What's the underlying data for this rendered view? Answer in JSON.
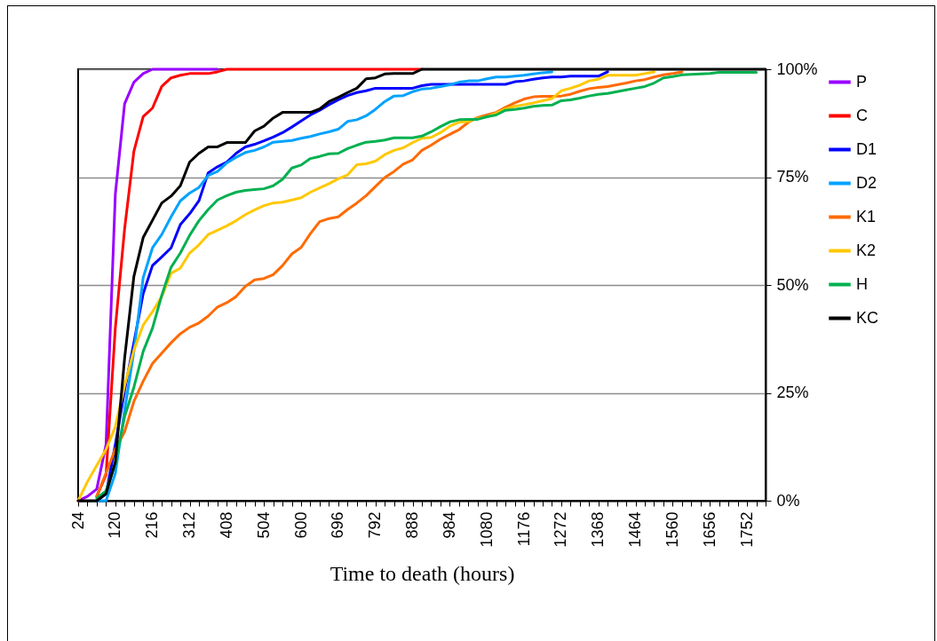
{
  "chart_data": {
    "type": "line",
    "xlabel": "Time to death (hours)",
    "x": [
      24,
      48,
      72,
      96,
      120,
      144,
      168,
      192,
      216,
      240,
      264,
      288,
      312,
      336,
      360,
      384,
      408,
      432,
      456,
      480,
      504,
      528,
      552,
      576,
      600,
      624,
      648,
      672,
      696,
      720,
      744,
      768,
      792,
      816,
      840,
      864,
      888,
      912,
      936,
      960,
      984,
      1008,
      1032,
      1056,
      1080,
      1104,
      1128,
      1152,
      1176,
      1200,
      1224,
      1248,
      1272,
      1296,
      1320,
      1344,
      1368,
      1392,
      1416,
      1440,
      1464,
      1488,
      1512,
      1536,
      1560,
      1584,
      1608,
      1632,
      1656,
      1680,
      1704,
      1728,
      1752,
      1776,
      1800
    ],
    "xlim": [
      24,
      1800
    ],
    "xticks": [
      24,
      {
        "value": 48,
        "label": null
      },
      {
        "value": 72,
        "label": null
      },
      {
        "value": 96,
        "label": null
      },
      120,
      {
        "value": 144,
        "label": null
      },
      {
        "value": 168,
        "label": null
      },
      {
        "value": 192,
        "label": null
      },
      216,
      {
        "value": 240,
        "label": null
      },
      {
        "value": 264,
        "label": null
      },
      {
        "value": 288,
        "label": null
      },
      312,
      {
        "value": 336,
        "label": null
      },
      {
        "value": 360,
        "label": null
      },
      {
        "value": 384,
        "label": null
      },
      408,
      {
        "value": 432,
        "label": null
      },
      {
        "value": 456,
        "label": null
      },
      {
        "value": 480,
        "label": null
      },
      504,
      {
        "value": 528,
        "label": null
      },
      {
        "value": 552,
        "label": null
      },
      {
        "value": 576,
        "label": null
      },
      600,
      {
        "value": 624,
        "label": null
      },
      {
        "value": 648,
        "label": null
      },
      {
        "value": 672,
        "label": null
      },
      696,
      {
        "value": 720,
        "label": null
      },
      {
        "value": 744,
        "label": null
      },
      {
        "value": 768,
        "label": null
      },
      792,
      {
        "value": 816,
        "label": null
      },
      {
        "value": 840,
        "label": null
      },
      {
        "value": 864,
        "label": null
      },
      888,
      {
        "value": 912,
        "label": null
      },
      {
        "value": 936,
        "label": null
      },
      {
        "value": 960,
        "label": null
      },
      984,
      {
        "value": 1008,
        "label": null
      },
      {
        "value": 1032,
        "label": null
      },
      {
        "value": 1056,
        "label": null
      },
      1080,
      {
        "value": 1104,
        "label": null
      },
      {
        "value": 1128,
        "label": null
      },
      {
        "value": 1152,
        "label": null
      },
      1176,
      {
        "value": 1200,
        "label": null
      },
      {
        "value": 1224,
        "label": null
      },
      {
        "value": 1248,
        "label": null
      },
      1272,
      {
        "value": 1296,
        "label": null
      },
      {
        "value": 1320,
        "label": null
      },
      {
        "value": 1344,
        "label": null
      },
      1368,
      {
        "value": 1392,
        "label": null
      },
      {
        "value": 1416,
        "label": null
      },
      {
        "value": 1440,
        "label": null
      },
      1464,
      {
        "value": 1488,
        "label": null
      },
      {
        "value": 1512,
        "label": null
      },
      {
        "value": 1536,
        "label": null
      },
      1560,
      {
        "value": 1584,
        "label": null
      },
      {
        "value": 1608,
        "label": null
      },
      {
        "value": 1632,
        "label": null
      },
      1656,
      {
        "value": 1680,
        "label": null
      },
      {
        "value": 1704,
        "label": null
      },
      {
        "value": 1728,
        "label": null
      },
      1752,
      {
        "value": 1776,
        "label": null
      },
      {
        "value": 1800,
        "label": null
      }
    ],
    "ylim": [
      0,
      100
    ],
    "yticks": [
      {
        "value": 0,
        "label": "0%"
      },
      {
        "value": 25,
        "label": "25%"
      },
      {
        "value": 50,
        "label": "50%"
      },
      {
        "value": 75,
        "label": "75%"
      },
      {
        "value": 100,
        "label": "100%"
      }
    ],
    "grid": "y",
    "legend": "right",
    "series": [
      {
        "name": "P",
        "color": "#9900ff",
        "values": [
          0,
          1,
          2.7,
          13,
          71,
          92,
          97,
          99,
          100,
          100,
          100,
          100,
          100,
          100,
          100,
          100,
          null,
          null,
          null,
          null,
          null,
          null,
          null,
          null,
          null,
          null,
          null,
          null,
          null,
          null,
          null,
          null,
          null,
          null,
          null,
          null,
          null,
          null,
          null,
          null,
          null,
          null,
          null,
          null,
          null,
          null,
          null,
          null,
          null,
          null,
          null,
          null,
          null,
          null,
          null,
          null,
          null,
          null,
          null,
          null,
          null,
          null,
          null,
          null,
          null,
          null,
          null,
          null,
          null,
          null,
          null,
          null,
          null,
          null,
          null
        ]
      },
      {
        "name": "C",
        "color": "#ff0000",
        "values": [
          null,
          null,
          1,
          6,
          40,
          63,
          81,
          89,
          91,
          96,
          98,
          98.6,
          99,
          99,
          99,
          99.4,
          100,
          100,
          100,
          100,
          100,
          100,
          100,
          100,
          100,
          100,
          100,
          100,
          100,
          100,
          100,
          100,
          100,
          100,
          100,
          100,
          100,
          100,
          null,
          null,
          null,
          null,
          null,
          null,
          null,
          null,
          null,
          null,
          null,
          null,
          null,
          null,
          null,
          null,
          null,
          null,
          null,
          null,
          null,
          null,
          null,
          null,
          null,
          null,
          null,
          null,
          null,
          null,
          null,
          null,
          null,
          null,
          null,
          null,
          null
        ]
      },
      {
        "name": "D1",
        "color": "#0000ff",
        "values": [
          null,
          null,
          0,
          1.6,
          13,
          25.6,
          36.6,
          48,
          54.5,
          56.5,
          58.6,
          64,
          66.5,
          69.5,
          76,
          77.4,
          78.5,
          80.5,
          82,
          82.6,
          83.4,
          84.3,
          85.3,
          86.6,
          88,
          89.4,
          90.5,
          91.8,
          92.9,
          93.9,
          94.6,
          95,
          95.6,
          95.6,
          95.6,
          95.6,
          95.6,
          96.2,
          96.5,
          96.5,
          96.5,
          96.5,
          96.5,
          96.5,
          96.5,
          96.5,
          96.5,
          97.1,
          97.3,
          97.7,
          98,
          98.2,
          98.2,
          98.4,
          98.4,
          98.4,
          98.4,
          99.4,
          null,
          null,
          null,
          null,
          null,
          null,
          null,
          null,
          null,
          null,
          null,
          null,
          null,
          null,
          null,
          null,
          null
        ]
      },
      {
        "name": "D2",
        "color": "#00a2ff",
        "values": [
          null,
          null,
          0,
          0,
          6.3,
          20.9,
          34.6,
          51.7,
          58.6,
          61.7,
          65.8,
          69.5,
          71.3,
          72.6,
          75.4,
          76.3,
          78.3,
          79.6,
          80.7,
          81.2,
          82,
          83.1,
          83.3,
          83.5,
          84,
          84.4,
          85,
          85.5,
          86.1,
          87.9,
          88.3,
          89.2,
          90.7,
          92.5,
          93.8,
          93.9,
          94.8,
          95.4,
          95.6,
          96,
          96.4,
          97,
          97.3,
          97.3,
          97.8,
          98.2,
          98.2,
          98.4,
          98.6,
          98.9,
          99.2,
          99.4,
          null,
          null,
          null,
          null,
          null,
          null,
          null,
          null,
          null,
          null,
          null,
          null,
          null,
          null,
          null,
          null,
          null,
          null,
          null,
          null,
          null,
          null,
          null
        ]
      },
      {
        "name": "K1",
        "color": "#ff6a00",
        "values": [
          null,
          null,
          1,
          6.4,
          12,
          16,
          23,
          27.7,
          31.8,
          34.2,
          36.6,
          38.7,
          40.2,
          41.2,
          42.8,
          44.9,
          45.9,
          47.3,
          49.7,
          51.2,
          51.5,
          52.4,
          54.5,
          57.2,
          58.7,
          61.9,
          64.7,
          65.4,
          65.8,
          67.5,
          69,
          70.7,
          72.8,
          74.9,
          76.3,
          78,
          79,
          81.2,
          82.4,
          83.8,
          84.9,
          86,
          87.7,
          88.8,
          89.4,
          90,
          91.2,
          92.2,
          93.1,
          93.6,
          93.7,
          93.7,
          93.8,
          94.2,
          94.9,
          95.5,
          95.8,
          96,
          96.4,
          96.8,
          97.3,
          97.6,
          98.2,
          98.7,
          99,
          99.4,
          null,
          null,
          null,
          null,
          null,
          null,
          null,
          null,
          null
        ]
      },
      {
        "name": "K2",
        "color": "#ffc800",
        "values": [
          0,
          4.4,
          8.2,
          11.9,
          17.1,
          26.7,
          34.9,
          40.7,
          43.8,
          47.3,
          52.7,
          53.9,
          57.4,
          59.3,
          61.7,
          62.7,
          63.7,
          64.9,
          66.3,
          67.4,
          68.4,
          69,
          69.2,
          69.7,
          70.2,
          71.5,
          72.5,
          73.5,
          74.6,
          75.5,
          77.9,
          78.1,
          78.7,
          80.2,
          81.2,
          81.8,
          83,
          84,
          84.2,
          85.3,
          86.8,
          87.7,
          87.9,
          88.6,
          89,
          89.8,
          90.8,
          91.4,
          91.8,
          92.2,
          92.7,
          93.2,
          95,
          95.6,
          96.3,
          97.3,
          97.7,
          98.6,
          98.6,
          98.6,
          98.6,
          99,
          99.4,
          null,
          null,
          null,
          null,
          null,
          null,
          null,
          null,
          null,
          null,
          null,
          null
        ]
      },
      {
        "name": "H",
        "color": "#00b050",
        "values": [
          null,
          null,
          0.6,
          2.3,
          8.5,
          19.5,
          26.3,
          34.6,
          40,
          47.6,
          54.1,
          57.4,
          61.5,
          64.9,
          67.5,
          69.7,
          70.7,
          71.5,
          71.9,
          72.1,
          72.3,
          73,
          74.5,
          77.1,
          77.8,
          79.3,
          79.8,
          80.4,
          80.5,
          81.6,
          82.4,
          83.1,
          83.3,
          83.6,
          84.1,
          84.1,
          84.1,
          84.5,
          85.5,
          86.7,
          87.8,
          88.3,
          88.4,
          88.4,
          89,
          89.4,
          90.5,
          90.7,
          91,
          91.4,
          91.6,
          91.7,
          92.7,
          92.9,
          93.3,
          93.8,
          94.2,
          94.4,
          94.8,
          95.2,
          95.6,
          96,
          96.8,
          98,
          98.3,
          98.7,
          98.8,
          98.9,
          99,
          99.3,
          99.3,
          99.3,
          99.3,
          99.3,
          null
        ]
      },
      {
        "name": "KC",
        "color": "#000000",
        "values": [
          0,
          0,
          0,
          1.6,
          9,
          33,
          52,
          61,
          65,
          69,
          70.6,
          73,
          78.5,
          80.5,
          82,
          82,
          83,
          83,
          83,
          85.7,
          86.8,
          88.7,
          90,
          90,
          90,
          90,
          90.8,
          92.5,
          93.5,
          94.6,
          95.6,
          97.8,
          98,
          98.9,
          99,
          99,
          99,
          100,
          100,
          100,
          100,
          100,
          100,
          100,
          100,
          100,
          100,
          100,
          100,
          100,
          100,
          100,
          100,
          100,
          100,
          100,
          100,
          100,
          100,
          100,
          100,
          100,
          100,
          100,
          100,
          100,
          100,
          100,
          100,
          100,
          100,
          100,
          100,
          100,
          100
        ]
      }
    ]
  }
}
